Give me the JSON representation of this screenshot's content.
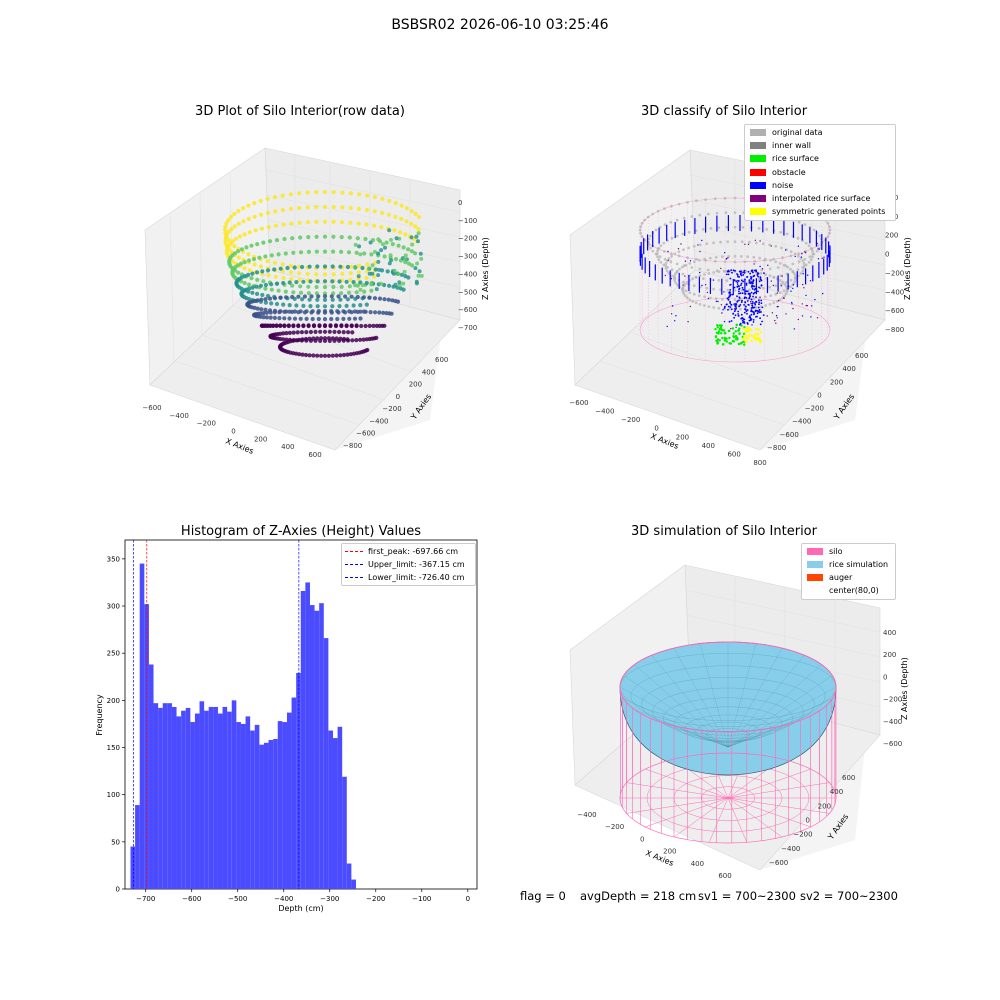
{
  "figure": {
    "suptitle": "BSBSR02 2026-06-10 03:25:46",
    "status_line": {
      "flag": "flag = 0",
      "avg_depth": "avgDepth = 218 cm",
      "sv1": "sv1 = 700~2300",
      "sv2": "sv2 = 700~2300"
    }
  },
  "panels": {
    "raw": {
      "title": "3D Plot of Silo Interior(row data)",
      "xlabel": "X Axies",
      "ylabel": "Y Axies",
      "zlabel": "Z Axies (Depth)",
      "x_ticks": [
        "−600",
        "−400",
        "−200",
        "0",
        "200",
        "400",
        "600"
      ],
      "y_ticks": [
        "600",
        "400",
        "200",
        "0",
        "−200",
        "−400",
        "−600",
        "−800"
      ],
      "z_ticks": [
        "0",
        "−100",
        "−200",
        "−300",
        "−400",
        "−500",
        "−600",
        "−700"
      ],
      "colormap": [
        "#fde725",
        "#5ec962",
        "#21918c",
        "#3b528b",
        "#440154"
      ]
    },
    "classify": {
      "title": "3D classify of Silo Interior",
      "xlabel": "X Axies",
      "ylabel": "Y Axies",
      "zlabel": "Z Axies (Depth)",
      "x_ticks": [
        "−600",
        "−400",
        "−200",
        "0",
        "200",
        "400",
        "600",
        "800"
      ],
      "y_ticks": [
        "600",
        "400",
        "200",
        "0",
        "−200",
        "−400",
        "−600",
        "−800"
      ],
      "z_ticks": [
        "600",
        "400",
        "200",
        "0",
        "−200",
        "−400",
        "−600",
        "−800"
      ],
      "legend": [
        {
          "label": "original data",
          "color": "#b0b0b0"
        },
        {
          "label": "inner wall",
          "color": "#808080"
        },
        {
          "label": "rice surface",
          "color": "#00ee00"
        },
        {
          "label": "obstacle",
          "color": "#ff0000"
        },
        {
          "label": "noise",
          "color": "#0000ff"
        },
        {
          "label": "interpolated rice surface",
          "color": "#800080"
        },
        {
          "label": "symmetric generated points",
          "color": "#ffff00"
        }
      ]
    },
    "simulation": {
      "title": "3D simulation of Silo Interior",
      "xlabel": "X Axies",
      "ylabel": "Y Axies",
      "zlabel": "Z Axies (Depth)",
      "x_ticks": [
        "−400",
        "−200",
        "0",
        "200",
        "400",
        "600"
      ],
      "y_ticks": [
        "600",
        "400",
        "200",
        "0",
        "−200",
        "−400",
        "−600"
      ],
      "z_ticks": [
        "400",
        "200",
        "0",
        "−200",
        "−400",
        "−600"
      ],
      "legend": [
        {
          "label": "silo",
          "color": "#ff69b4"
        },
        {
          "label": "rice simulation",
          "color": "#87ceeb"
        },
        {
          "label": "auger",
          "color": "#ff4500"
        },
        {
          "label": "center(80,0)",
          "color": ""
        }
      ]
    }
  },
  "chart_data": {
    "type": "bar",
    "title": "Histogram of Z-Axies (Height) Values",
    "xlabel": "Depth (cm)",
    "ylabel": "Frequency",
    "xlim": [
      -745,
      20
    ],
    "ylim": [
      0,
      370
    ],
    "x_ticks": [
      -700,
      -600,
      -500,
      -400,
      -300,
      -200,
      -100,
      0
    ],
    "x_tick_labels": [
      "−700",
      "−600",
      "−500",
      "−400",
      "−300",
      "−200",
      "−100",
      "0"
    ],
    "y_ticks": [
      0,
      50,
      100,
      150,
      200,
      250,
      300,
      350
    ],
    "bar_color": "#4b4bff",
    "bin_start": -733,
    "bin_width": 10,
    "values": [
      45,
      89,
      345,
      302,
      238,
      197,
      192,
      197,
      197,
      193,
      183,
      189,
      192,
      177,
      186,
      199,
      189,
      193,
      193,
      186,
      193,
      188,
      200,
      177,
      175,
      183,
      168,
      174,
      153,
      155,
      158,
      159,
      178,
      177,
      187,
      203,
      229,
      316,
      325,
      301,
      295,
      303,
      266,
      168,
      160,
      172,
      119,
      27,
      10
    ],
    "vlines": [
      {
        "label": "first_peak: -697.66 cm",
        "x": -697.66,
        "color": "#ff0000"
      },
      {
        "label": "Upper_limit: -367.15 cm",
        "x": -367.15,
        "color": "#0000ff"
      },
      {
        "label": "Lower_limit: -726.40 cm",
        "x": -726.4,
        "color": "#0000ff"
      }
    ],
    "legend_position": "top-right"
  }
}
